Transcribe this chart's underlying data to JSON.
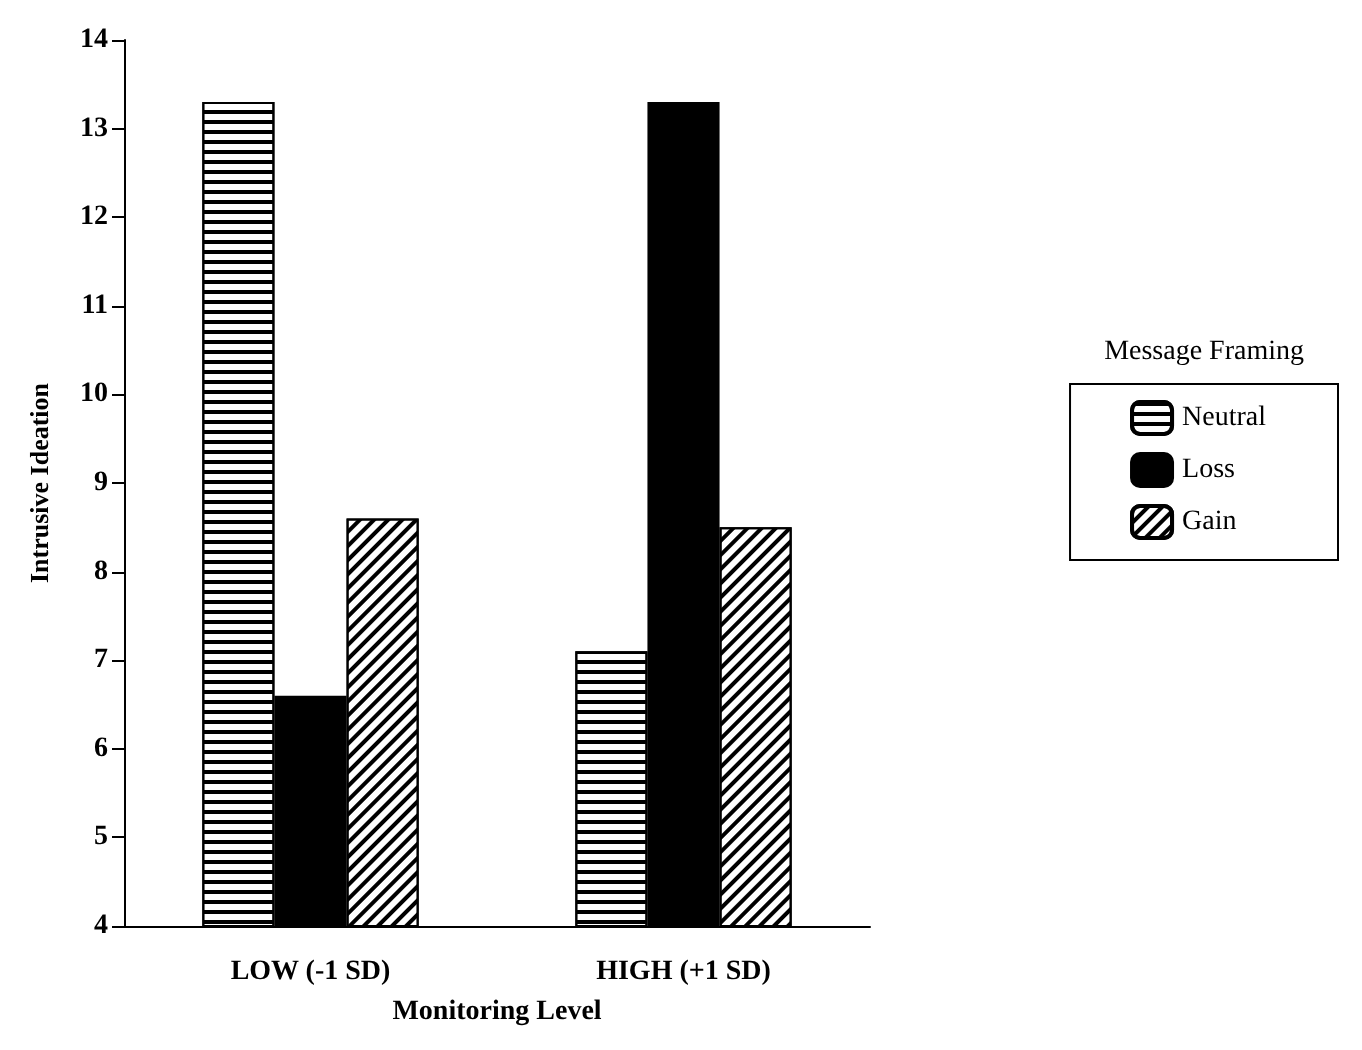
{
  "chart_data": {
    "type": "bar",
    "xlabel": "Monitoring Level",
    "ylabel": "Intrusive Ideation",
    "legend_title": "Message Framing",
    "categories": [
      "LOW (-1 SD)",
      "HIGH (+1 SD)"
    ],
    "series": [
      {
        "name": "Neutral",
        "color": "#ffffff",
        "values": [
          13.3,
          7.1
        ]
      },
      {
        "name": "Loss",
        "color": "#000000",
        "values": [
          6.6,
          13.3
        ]
      },
      {
        "name": "Gain",
        "color": "#ffffff",
        "values": [
          8.6,
          8.5
        ]
      }
    ],
    "ylim": [
      4,
      14
    ],
    "yticks": [
      4,
      5,
      6,
      7,
      8,
      9,
      10,
      11,
      12,
      13,
      14
    ],
    "grid": false,
    "legend": "right"
  }
}
